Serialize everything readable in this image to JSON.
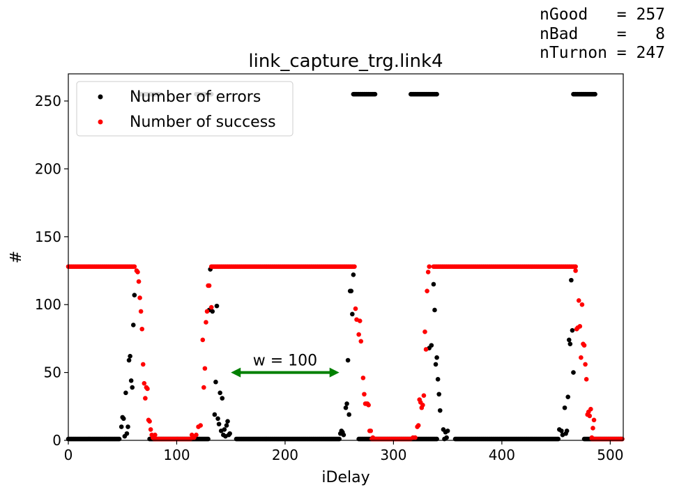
{
  "stats": {
    "ngood": "nGood   = 257",
    "nbad": "nBad    =   8",
    "nturnon": "nTurnon = 247"
  },
  "chart_data": {
    "type": "scatter",
    "title": "link_capture_trg.link4",
    "xlabel": "iDelay",
    "ylabel": "#",
    "xlim": [
      0,
      512
    ],
    "ylim": [
      0,
      270
    ],
    "xticks": [
      0,
      100,
      200,
      300,
      400,
      500
    ],
    "yticks": [
      0,
      50,
      100,
      150,
      200,
      250
    ],
    "grid": false,
    "legend_position": "upper-left",
    "annotation": {
      "text": "w = 100",
      "arrow_from": [
        150,
        50
      ],
      "arrow_to": [
        250,
        50
      ],
      "color": "#008000"
    },
    "series": [
      {
        "name": "Number of errors",
        "color": "#000000",
        "segments": [
          {
            "x_start": 0,
            "x_end": 47,
            "y": 1
          },
          {
            "x_start": 75,
            "x_end": 129,
            "y": 1
          },
          {
            "x_start": 155,
            "x_end": 250,
            "y": 1
          },
          {
            "x_start": 268,
            "x_end": 340,
            "y": 1
          },
          {
            "x_start": 357,
            "x_end": 452,
            "y": 1
          },
          {
            "x_start": 476,
            "x_end": 511,
            "y": 1
          }
        ],
        "saturated": [
          {
            "x_start": 65,
            "x_end": 85,
            "y": 255
          },
          {
            "x_start": 118,
            "x_end": 132,
            "y": 255
          },
          {
            "x_start": 263,
            "x_end": 283,
            "y": 255
          },
          {
            "x_start": 316,
            "x_end": 340,
            "y": 255
          },
          {
            "x_start": 466,
            "x_end": 486,
            "y": 255
          }
        ],
        "points": [
          [
            49,
            10
          ],
          [
            50,
            17
          ],
          [
            51,
            16
          ],
          [
            52,
            3
          ],
          [
            53,
            35
          ],
          [
            54,
            5
          ],
          [
            55,
            10
          ],
          [
            56,
            59
          ],
          [
            57,
            62
          ],
          [
            58,
            44
          ],
          [
            59,
            39
          ],
          [
            60,
            85
          ],
          [
            61,
            107
          ],
          [
            130,
            96
          ],
          [
            131,
            126
          ],
          [
            133,
            95
          ],
          [
            135,
            19
          ],
          [
            136,
            43
          ],
          [
            137,
            99
          ],
          [
            138,
            16
          ],
          [
            139,
            12
          ],
          [
            140,
            35
          ],
          [
            141,
            7
          ],
          [
            142,
            31
          ],
          [
            143,
            4
          ],
          [
            144,
            8
          ],
          [
            145,
            3
          ],
          [
            146,
            11
          ],
          [
            147,
            14
          ],
          [
            148,
            4
          ],
          [
            149,
            5
          ],
          [
            251,
            5
          ],
          [
            252,
            7
          ],
          [
            253,
            6
          ],
          [
            254,
            4
          ],
          [
            256,
            24
          ],
          [
            257,
            27
          ],
          [
            258,
            59
          ],
          [
            259,
            19
          ],
          [
            260,
            110
          ],
          [
            261,
            110
          ],
          [
            262,
            93
          ],
          [
            263,
            122
          ],
          [
            333,
            68
          ],
          [
            335,
            70
          ],
          [
            337,
            115
          ],
          [
            338,
            96
          ],
          [
            339,
            56
          ],
          [
            340,
            61
          ],
          [
            341,
            45
          ],
          [
            342,
            34
          ],
          [
            343,
            22
          ],
          [
            346,
            8
          ],
          [
            347,
            1
          ],
          [
            348,
            6
          ],
          [
            349,
            2
          ],
          [
            350,
            7
          ],
          [
            453,
            8
          ],
          [
            455,
            7
          ],
          [
            456,
            4
          ],
          [
            458,
            24
          ],
          [
            459,
            5
          ],
          [
            460,
            7
          ],
          [
            461,
            32
          ],
          [
            462,
            74
          ],
          [
            463,
            71
          ],
          [
            464,
            118
          ],
          [
            465,
            81
          ],
          [
            466,
            50
          ]
        ]
      },
      {
        "name": "Number of success",
        "color": "#ff0000",
        "segments": [
          {
            "x_start": 0,
            "x_end": 61,
            "y": 128
          },
          {
            "x_start": 132,
            "x_end": 264,
            "y": 128
          },
          {
            "x_start": 337,
            "x_end": 468,
            "y": 128
          },
          {
            "x_start": 79,
            "x_end": 113,
            "y": 1
          },
          {
            "x_start": 280,
            "x_end": 316,
            "y": 1
          },
          {
            "x_start": 483,
            "x_end": 511,
            "y": 1
          }
        ],
        "points": [
          [
            63,
            125
          ],
          [
            64,
            124
          ],
          [
            65,
            117
          ],
          [
            66,
            105
          ],
          [
            67,
            95
          ],
          [
            68,
            82
          ],
          [
            69,
            56
          ],
          [
            70,
            42
          ],
          [
            71,
            31
          ],
          [
            72,
            39
          ],
          [
            73,
            38
          ],
          [
            74,
            15
          ],
          [
            75,
            14
          ],
          [
            76,
            8
          ],
          [
            77,
            4
          ],
          [
            78,
            2
          ],
          [
            80,
            4
          ],
          [
            114,
            4
          ],
          [
            116,
            2
          ],
          [
            118,
            4
          ],
          [
            120,
            10
          ],
          [
            122,
            11
          ],
          [
            124,
            74
          ],
          [
            125,
            39
          ],
          [
            126,
            53
          ],
          [
            127,
            87
          ],
          [
            128,
            95
          ],
          [
            129,
            114
          ],
          [
            130,
            114
          ],
          [
            132,
            98
          ],
          [
            265,
            97
          ],
          [
            266,
            89
          ],
          [
            268,
            78
          ],
          [
            269,
            88
          ],
          [
            270,
            73
          ],
          [
            272,
            46
          ],
          [
            273,
            34
          ],
          [
            274,
            27
          ],
          [
            275,
            27
          ],
          [
            276,
            27
          ],
          [
            277,
            26
          ],
          [
            278,
            7
          ],
          [
            279,
            7
          ],
          [
            281,
            2
          ],
          [
            318,
            2
          ],
          [
            320,
            2
          ],
          [
            322,
            10
          ],
          [
            323,
            11
          ],
          [
            324,
            30
          ],
          [
            325,
            28
          ],
          [
            326,
            24
          ],
          [
            327,
            26
          ],
          [
            328,
            33
          ],
          [
            329,
            80
          ],
          [
            330,
            67
          ],
          [
            331,
            110
          ],
          [
            332,
            124
          ],
          [
            333,
            128
          ],
          [
            468,
            125
          ],
          [
            469,
            82
          ],
          [
            470,
            83
          ],
          [
            471,
            103
          ],
          [
            472,
            84
          ],
          [
            473,
            61
          ],
          [
            474,
            100
          ],
          [
            475,
            71
          ],
          [
            476,
            70
          ],
          [
            477,
            56
          ],
          [
            478,
            45
          ],
          [
            479,
            19
          ],
          [
            480,
            21
          ],
          [
            481,
            18
          ],
          [
            482,
            23
          ],
          [
            483,
            2
          ],
          [
            484,
            9
          ],
          [
            485,
            15
          ]
        ]
      }
    ]
  }
}
